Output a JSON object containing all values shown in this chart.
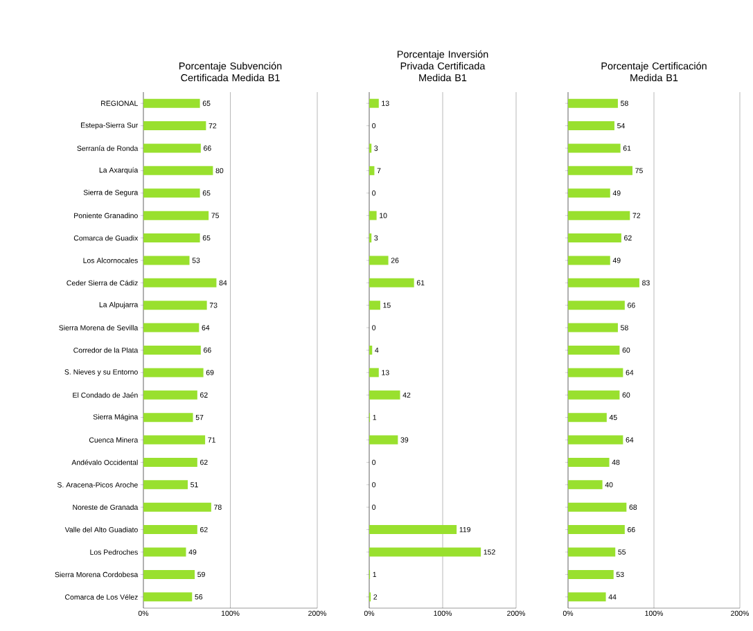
{
  "chart_data": [
    {
      "type": "bar",
      "orientation": "horizontal",
      "title": "Porcentaje Subvención Certificada Medida B1",
      "categories": [
        "REGIONAL",
        "Estepa-Sierra Sur",
        "Serranía de Ronda",
        "La Axarquía",
        "Sierra de Segura",
        "Poniente Granadino",
        "Comarca de Guadix",
        "Los Alcornocales",
        "Ceder Sierra de Cádiz",
        "La Alpujarra",
        "Sierra Morena de Sevilla",
        "Corredor de la Plata",
        "S. Nieves y su Entorno",
        "El Condado de Jaén",
        "Sierra Mágina",
        "Cuenca Minera",
        "Andévalo Occidental",
        "S. Aracena-Picos Aroche",
        "Noreste de Granada",
        "Valle del Alto Guadiato",
        "Los Pedroches",
        "Sierra Morena Cordobesa",
        "Comarca de Los Vélez"
      ],
      "values": [
        65,
        72,
        66,
        80,
        65,
        75,
        65,
        53,
        84,
        73,
        64,
        66,
        69,
        62,
        57,
        71,
        62,
        51,
        78,
        62,
        49,
        59,
        56
      ],
      "color": "#99e02e",
      "data_labels": true,
      "grid": "x",
      "xlim": [
        0,
        200
      ],
      "xticks": [
        {
          "value": 0,
          "label": "0%"
        },
        {
          "value": 100,
          "label": "100%"
        },
        {
          "value": 200,
          "label": "200%"
        }
      ]
    },
    {
      "type": "bar",
      "orientation": "horizontal",
      "title": "Porcentaje Inversión Privada Certificada Medida B1",
      "values": [
        13,
        0,
        3,
        7,
        0,
        10,
        3,
        26,
        61,
        15,
        0,
        4,
        13,
        42,
        1,
        39,
        0,
        0,
        0,
        119,
        152,
        1,
        2
      ],
      "color": "#99e02e",
      "data_labels": true,
      "grid": "x",
      "tick_labels": "x",
      "xlim": [
        0,
        200
      ],
      "xticks": [
        {
          "value": 0,
          "label": "0%"
        },
        {
          "value": 100,
          "label": "100%"
        },
        {
          "value": 200,
          "label": "200%"
        }
      ]
    },
    {
      "type": "bar",
      "orientation": "horizontal",
      "title": "Porcentaje Certificación Medida B1",
      "values": [
        58,
        54,
        61,
        75,
        49,
        72,
        62,
        49,
        83,
        66,
        58,
        60,
        64,
        60,
        45,
        64,
        48,
        40,
        68,
        66,
        55,
        53,
        44
      ],
      "color": "#99e02e",
      "data_labels": true,
      "grid": "x",
      "tick_labels": "x",
      "xlim": [
        0,
        200
      ],
      "xticks": [
        {
          "value": 0,
          "label": "0%"
        },
        {
          "value": 100,
          "label": "100%"
        },
        {
          "value": 200,
          "label": "200%"
        }
      ]
    }
  ]
}
